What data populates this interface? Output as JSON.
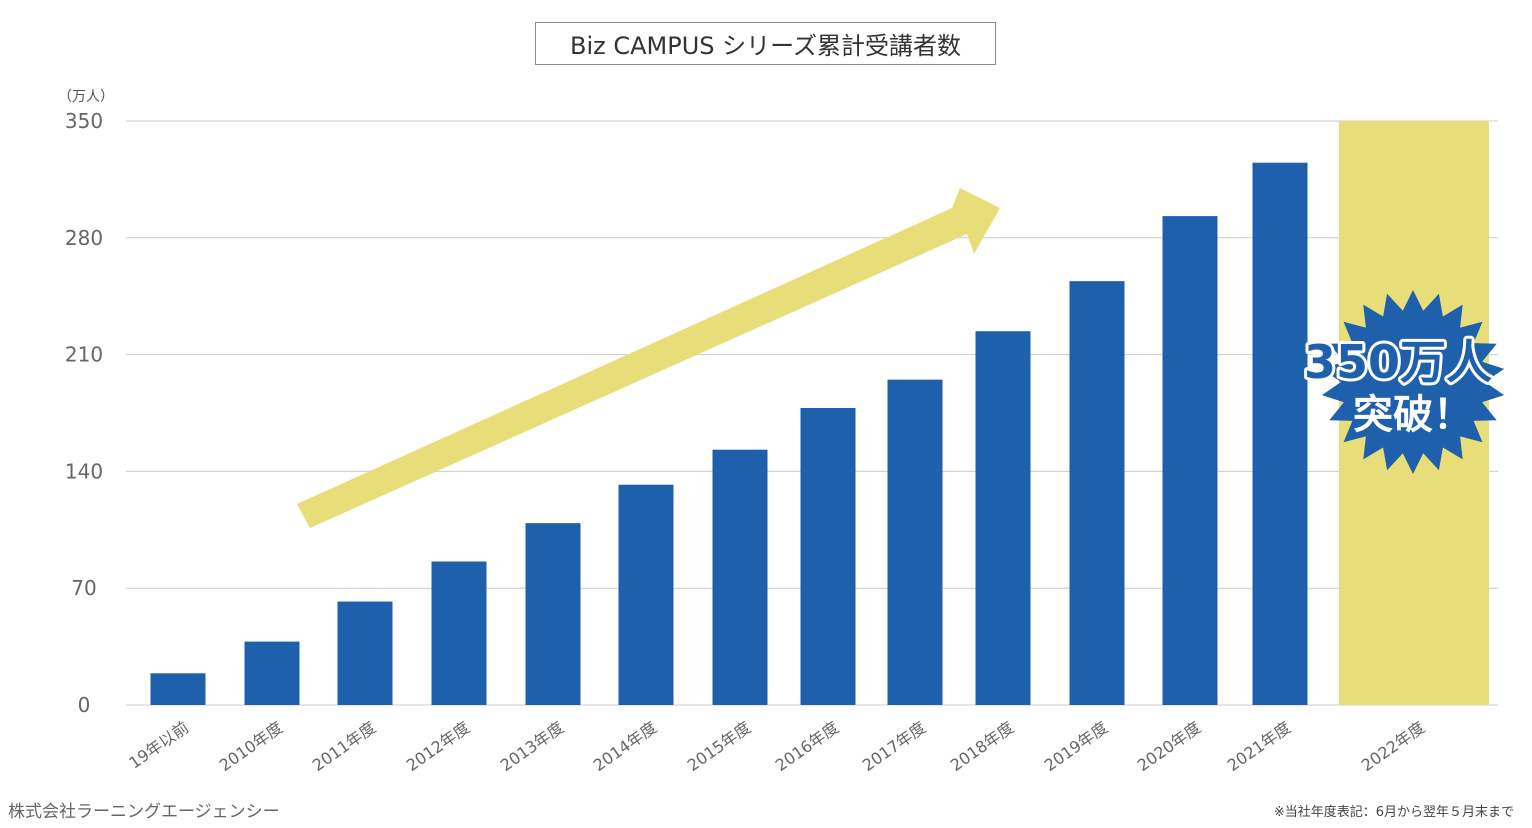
{
  "chart_data": {
    "type": "bar",
    "title": "Biz CAMPUS シリーズ累計受講者数",
    "unit_label": "（万人）",
    "categories": [
      "19年以前",
      "2010年度",
      "2011年度",
      "2012年度",
      "2013年度",
      "2014年度",
      "2015年度",
      "2016年度",
      "2017年度",
      "2018年度",
      "2019年度",
      "2020年度",
      "2021年度",
      "2022年度"
    ],
    "values": [
      19,
      38,
      62,
      86,
      109,
      132,
      153,
      178,
      195,
      224,
      254,
      293,
      325,
      350
    ],
    "highlight_index": 13,
    "yticks": [
      0,
      70,
      140,
      210,
      280,
      350
    ],
    "ylim": [
      0,
      350
    ],
    "grid": true,
    "colors": {
      "bar": "#1f60ac",
      "highlight": "#e7de7a",
      "arrow": "#e7de7a",
      "badge": "#1f60ac",
      "grid": "#cccccc"
    },
    "annotation": {
      "line1": "350万人",
      "line2": "突破！"
    }
  },
  "footer": {
    "company": "株式会社ラーニングエージェンシー",
    "note": "※当社年度表記：6月から翌年５月末まで"
  }
}
